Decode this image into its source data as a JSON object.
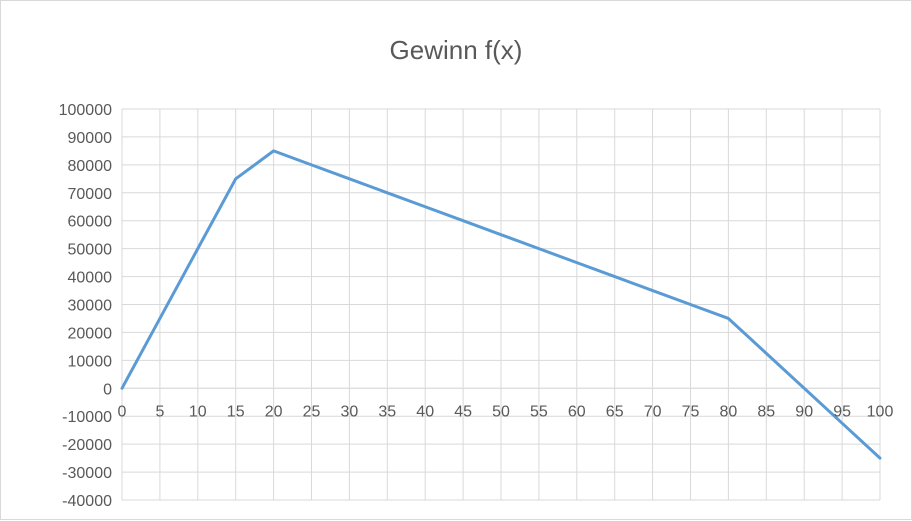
{
  "chart_data": {
    "type": "line",
    "title": "Gewinn f(x)",
    "xlabel": "",
    "ylabel": "",
    "x": [
      0,
      5,
      10,
      15,
      20,
      25,
      30,
      35,
      40,
      45,
      50,
      55,
      60,
      65,
      70,
      75,
      80,
      85,
      90,
      95,
      100
    ],
    "series": [
      {
        "values": [
          0,
          25000,
          50000,
          75000,
          85000,
          80000,
          75000,
          70000,
          65000,
          60000,
          55000,
          50000,
          45000,
          40000,
          35000,
          30000,
          25000,
          12500,
          0,
          -12500,
          -25000
        ],
        "color": "#5b9bd5"
      }
    ],
    "xlim": [
      0,
      100
    ],
    "ylim": [
      -40000,
      100000
    ],
    "x_ticks": [
      "0",
      "5",
      "10",
      "15",
      "20",
      "25",
      "30",
      "35",
      "40",
      "45",
      "50",
      "55",
      "60",
      "65",
      "70",
      "75",
      "80",
      "85",
      "90",
      "95",
      "100"
    ],
    "y_ticks": [
      "100000",
      "90000",
      "80000",
      "70000",
      "60000",
      "50000",
      "40000",
      "30000",
      "20000",
      "10000",
      "0",
      "-10000",
      "-20000",
      "-30000",
      "-40000"
    ],
    "grid": true,
    "legend": "none",
    "colors": {
      "grid": "#d9d9d9",
      "axis": "#d9d9d9",
      "text": "#595959",
      "line": "#5b9bd5"
    }
  }
}
